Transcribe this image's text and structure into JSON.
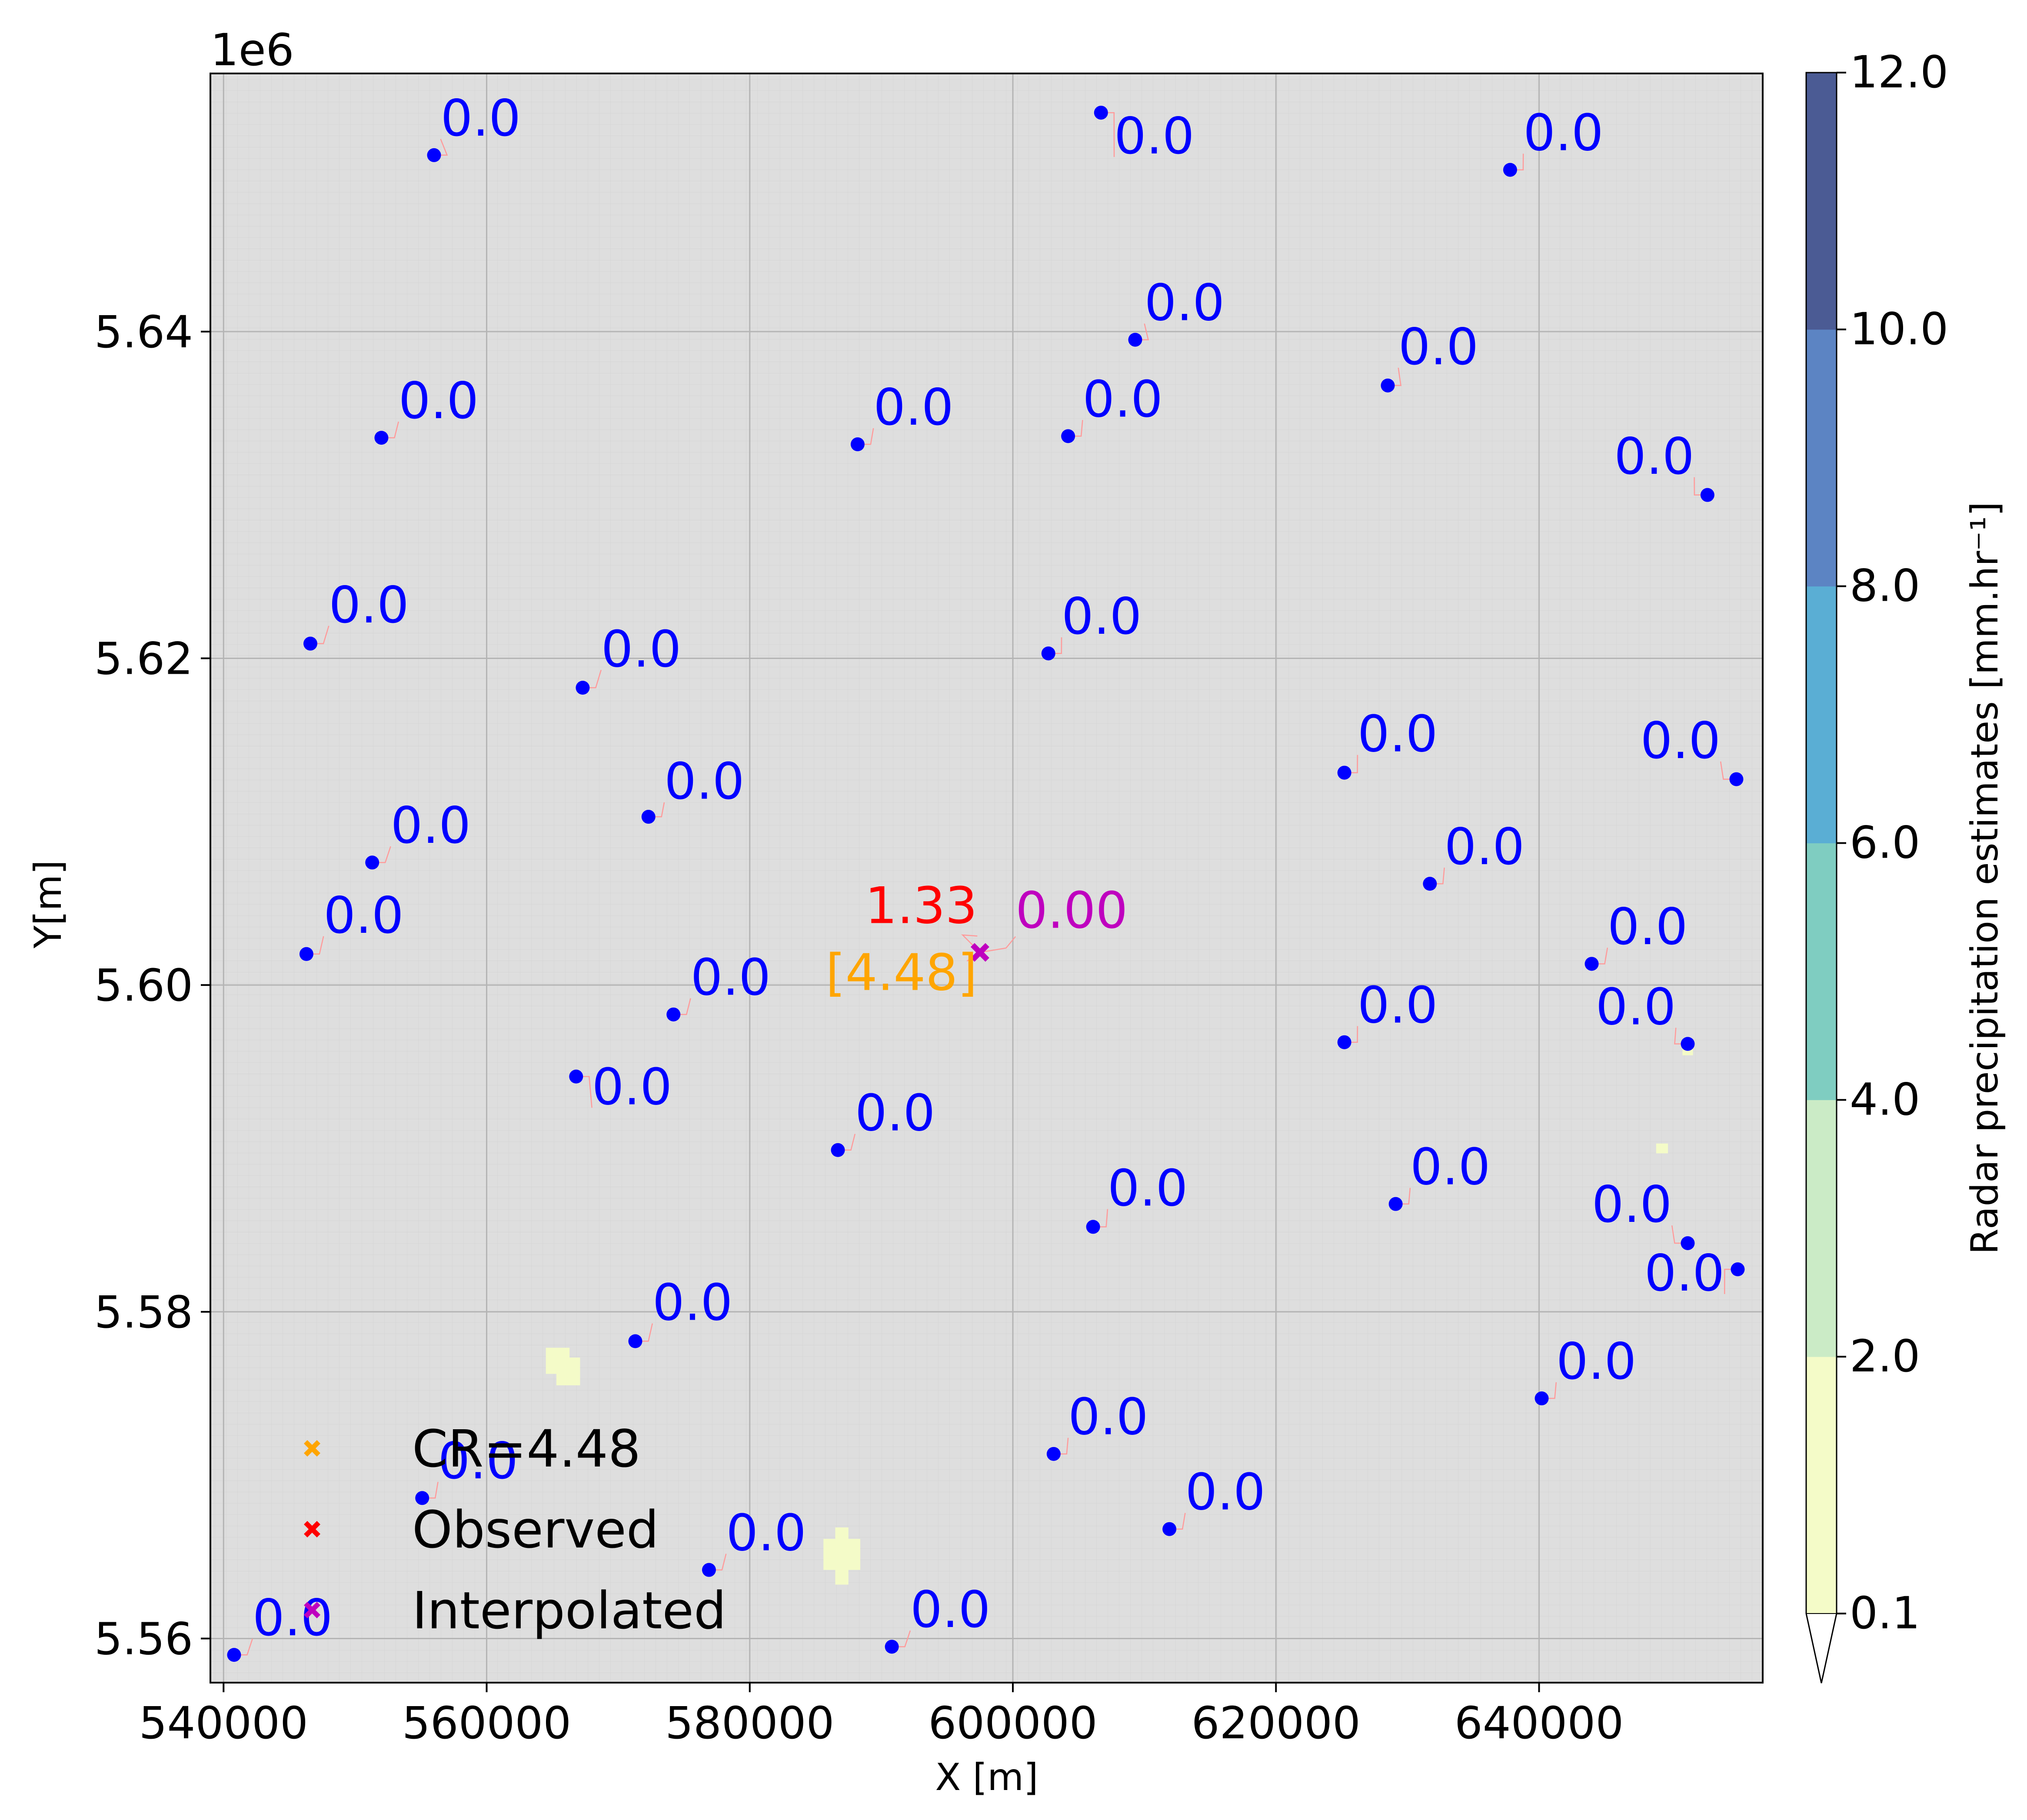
{
  "chart_data": {
    "type": "scatter",
    "offset_text": "1e6",
    "xlabel": "X [m]",
    "ylabel": "Y[m]",
    "xlim": [
      539000,
      657000
    ],
    "ylim": [
      5557300,
      5655800
    ],
    "x_ticks": [
      540000,
      560000,
      580000,
      600000,
      620000,
      640000
    ],
    "x_tick_labels": [
      "540000",
      "560000",
      "580000",
      "600000",
      "620000",
      "640000"
    ],
    "y_ticks": [
      5560000,
      5580000,
      5600000,
      5620000,
      5640000
    ],
    "y_tick_labels": [
      "5.56",
      "5.58",
      "5.60",
      "5.62",
      "5.64"
    ],
    "grid": true,
    "colors": {
      "background": "#dedede",
      "grid": "#b4b4b4",
      "station": "#0000ff",
      "observed": "#ff0000",
      "interpolated": "#bf00bf",
      "cr": "#ffa500",
      "leader_line": "#ff9a9a",
      "rain_patch": "#f4fbc8"
    },
    "colorbar": {
      "label": "Radar precipitation estimates [mm.hr⁻¹]",
      "levels": [
        0.1,
        2.0,
        4.0,
        6.0,
        8.0,
        10.0,
        12.0
      ],
      "tick_labels": [
        "0.1",
        "2.0",
        "4.0",
        "6.0",
        "8.0",
        "10.0",
        "12.0"
      ],
      "colors": [
        "#f4fbc8",
        "#cbebc6",
        "#7fcdc1",
        "#5aaed4",
        "#5c84c3",
        "#4b5b94"
      ],
      "extend": "min",
      "extend_color": "#ffffff"
    },
    "stations": [
      {
        "x": 556000,
        "y": 5650800,
        "label": "0.0",
        "lx": 556500,
        "ly": 5652000,
        "anchor": "start"
      },
      {
        "x": 606700,
        "y": 5653400,
        "label": "0.0",
        "lx": 607700,
        "ly": 5650900,
        "anchor": "start"
      },
      {
        "x": 637800,
        "y": 5649900,
        "label": "0.0",
        "lx": 638800,
        "ly": 5651100,
        "anchor": "start"
      },
      {
        "x": 609300,
        "y": 5639500,
        "label": "0.0",
        "lx": 610000,
        "ly": 5640700,
        "anchor": "start"
      },
      {
        "x": 628500,
        "y": 5636700,
        "label": "0.0",
        "lx": 629300,
        "ly": 5638000,
        "anchor": "start"
      },
      {
        "x": 552000,
        "y": 5633500,
        "label": "0.0",
        "lx": 553300,
        "ly": 5634700,
        "anchor": "start"
      },
      {
        "x": 588200,
        "y": 5633100,
        "label": "0.0",
        "lx": 589400,
        "ly": 5634300,
        "anchor": "start"
      },
      {
        "x": 604200,
        "y": 5633600,
        "label": "0.0",
        "lx": 605300,
        "ly": 5634800,
        "anchor": "start"
      },
      {
        "x": 652800,
        "y": 5630000,
        "label": "0.0",
        "lx": 651800,
        "ly": 5631300,
        "anchor": "end"
      },
      {
        "x": 546600,
        "y": 5620900,
        "label": "0.0",
        "lx": 548000,
        "ly": 5622200,
        "anchor": "start"
      },
      {
        "x": 567300,
        "y": 5618200,
        "label": "0.0",
        "lx": 568700,
        "ly": 5619500,
        "anchor": "start"
      },
      {
        "x": 602700,
        "y": 5620300,
        "label": "0.0",
        "lx": 603700,
        "ly": 5621500,
        "anchor": "start"
      },
      {
        "x": 625200,
        "y": 5613000,
        "label": "0.0",
        "lx": 626200,
        "ly": 5614300,
        "anchor": "start"
      },
      {
        "x": 655000,
        "y": 5612600,
        "label": "0.0",
        "lx": 653800,
        "ly": 5613900,
        "anchor": "end"
      },
      {
        "x": 572300,
        "y": 5610300,
        "label": "0.0",
        "lx": 573500,
        "ly": 5611400,
        "anchor": "start"
      },
      {
        "x": 551300,
        "y": 5607500,
        "label": "0.0",
        "lx": 552700,
        "ly": 5608700,
        "anchor": "start"
      },
      {
        "x": 631700,
        "y": 5606200,
        "label": "0.0",
        "lx": 632800,
        "ly": 5607400,
        "anchor": "start"
      },
      {
        "x": 546300,
        "y": 5601900,
        "label": "0.0",
        "lx": 547600,
        "ly": 5603200,
        "anchor": "start"
      },
      {
        "x": 644000,
        "y": 5601300,
        "label": "0.0",
        "lx": 645200,
        "ly": 5602500,
        "anchor": "start"
      },
      {
        "x": 574200,
        "y": 5598200,
        "label": "0.0",
        "lx": 575500,
        "ly": 5599400,
        "anchor": "start"
      },
      {
        "x": 625200,
        "y": 5596500,
        "label": "0.0",
        "lx": 626200,
        "ly": 5597700,
        "anchor": "start"
      },
      {
        "x": 651300,
        "y": 5596400,
        "label": "0.0",
        "lx": 650400,
        "ly": 5597600,
        "anchor": "end"
      },
      {
        "x": 566800,
        "y": 5594400,
        "label": "0.0",
        "lx": 568000,
        "ly": 5592700,
        "anchor": "start"
      },
      {
        "x": 586700,
        "y": 5589900,
        "label": "0.0",
        "lx": 588000,
        "ly": 5591100,
        "anchor": "start"
      },
      {
        "x": 629100,
        "y": 5586600,
        "label": "0.0",
        "lx": 630200,
        "ly": 5587800,
        "anchor": "start"
      },
      {
        "x": 606100,
        "y": 5585200,
        "label": "0.0",
        "lx": 607200,
        "ly": 5586500,
        "anchor": "start"
      },
      {
        "x": 651300,
        "y": 5584200,
        "label": "0.0",
        "lx": 650100,
        "ly": 5585500,
        "anchor": "end"
      },
      {
        "x": 655100,
        "y": 5582600,
        "label": "0.0",
        "lx": 654100,
        "ly": 5581300,
        "anchor": "end"
      },
      {
        "x": 571300,
        "y": 5578200,
        "label": "0.0",
        "lx": 572600,
        "ly": 5579500,
        "anchor": "start"
      },
      {
        "x": 640200,
        "y": 5574700,
        "label": "0.0",
        "lx": 641300,
        "ly": 5575900,
        "anchor": "start"
      },
      {
        "x": 603100,
        "y": 5571300,
        "label": "0.0",
        "lx": 604200,
        "ly": 5572500,
        "anchor": "start"
      },
      {
        "x": 555100,
        "y": 5568600,
        "label": "0.0",
        "lx": 556300,
        "ly": 5569800,
        "anchor": "start"
      },
      {
        "x": 611900,
        "y": 5566700,
        "label": "0.0",
        "lx": 613100,
        "ly": 5567900,
        "anchor": "start"
      },
      {
        "x": 576900,
        "y": 5564200,
        "label": "0.0",
        "lx": 578200,
        "ly": 5565400,
        "anchor": "start"
      },
      {
        "x": 590800,
        "y": 5559500,
        "label": "0.0",
        "lx": 592200,
        "ly": 5560700,
        "anchor": "start"
      },
      {
        "x": 540800,
        "y": 5559000,
        "label": "0.0",
        "lx": 542200,
        "ly": 5560200,
        "anchor": "start"
      }
    ],
    "target": {
      "x": 597500,
      "y": 5602000,
      "observed_label": "1.33",
      "observed_lx": 597300,
      "observed_ly": 5603800,
      "interpolated_label": "0.00",
      "interpolated_lx": 600200,
      "interpolated_ly": 5603500,
      "cr_label": "[4.48]",
      "cr_lx": 597300,
      "cr_ly": 5599700
    },
    "rain_patches": [
      {
        "x0": 564500,
        "y0": 5576200,
        "x1": 566300,
        "y1": 5577800
      },
      {
        "x0": 565300,
        "y0": 5575500,
        "x1": 567100,
        "y1": 5577200
      },
      {
        "x0": 585600,
        "y0": 5564200,
        "x1": 588400,
        "y1": 5566100
      },
      {
        "x0": 586500,
        "y0": 5563300,
        "x1": 587500,
        "y1": 5566800
      },
      {
        "x0": 648900,
        "y0": 5589700,
        "x1": 649800,
        "y1": 5590300
      },
      {
        "x0": 650900,
        "y0": 5595700,
        "x1": 651700,
        "y1": 5596700
      }
    ],
    "legend": {
      "position": "lower-left",
      "entries": [
        {
          "marker": "cr",
          "label": "CR=4.48"
        },
        {
          "marker": "observed",
          "label": "Observed"
        },
        {
          "marker": "interpolated",
          "label": "Interpolated"
        }
      ]
    }
  }
}
